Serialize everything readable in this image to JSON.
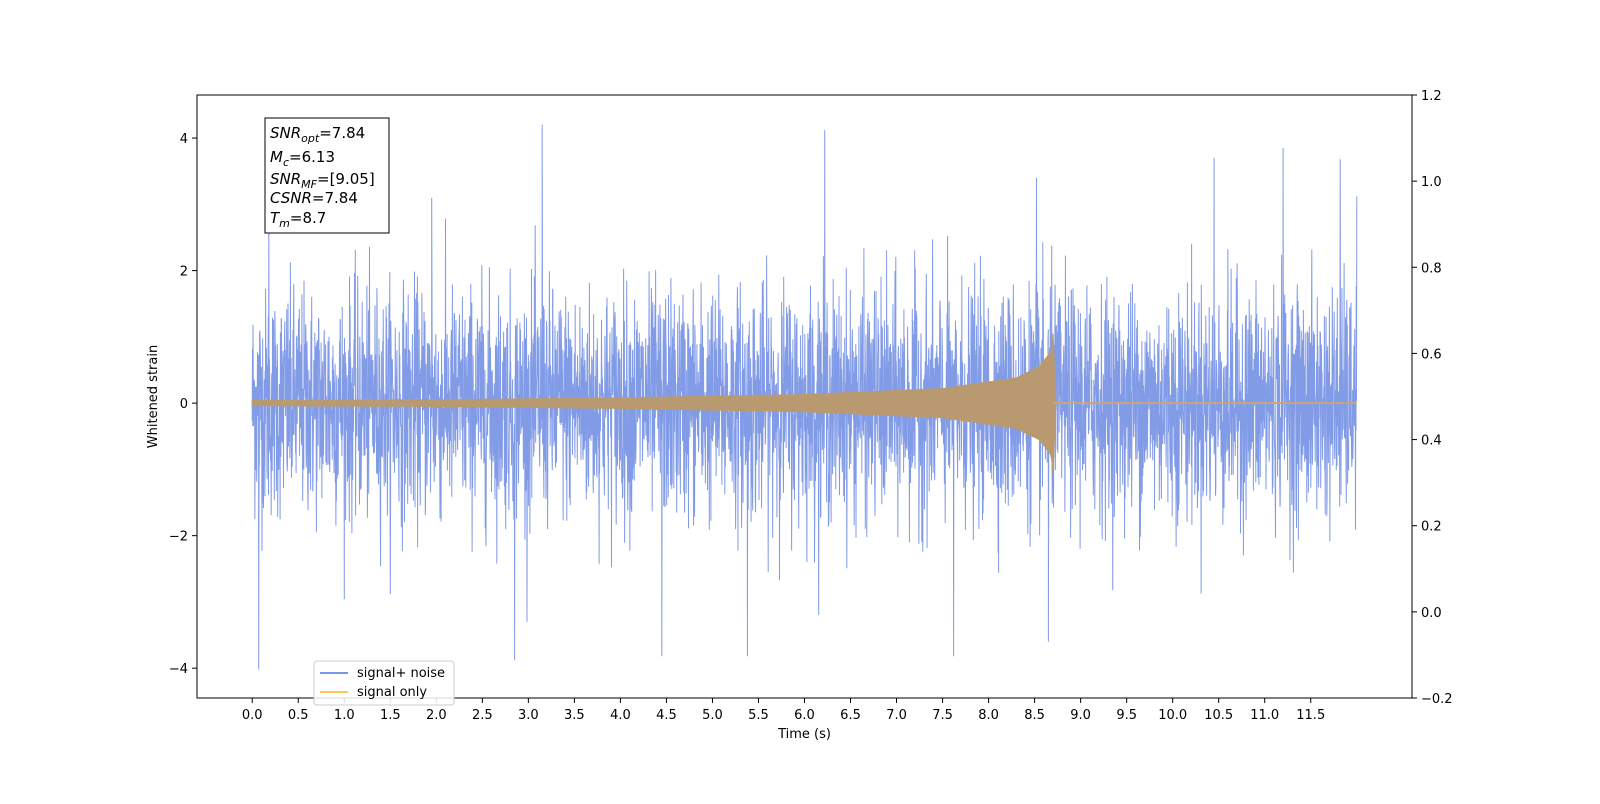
{
  "chart_data": {
    "type": "line",
    "xlabel": "Time (s)",
    "ylabel": "Whitened strain",
    "xlim": [
      -0.6,
      12.6
    ],
    "ylim": [
      -4.45,
      4.65
    ],
    "y2lim": [
      -0.2,
      1.2
    ],
    "x_ticks": [
      "0.0",
      "0.5",
      "1.0",
      "1.5",
      "2.0",
      "2.5",
      "3.0",
      "3.5",
      "4.0",
      "4.5",
      "5.0",
      "5.5",
      "6.0",
      "6.5",
      "7.0",
      "7.5",
      "8.0",
      "8.5",
      "9.0",
      "9.5",
      "10.0",
      "10.5",
      "11.0",
      "11.5"
    ],
    "y_ticks": [
      "−4",
      "−2",
      "0",
      "2",
      "4"
    ],
    "y2_ticks": [
      "−0.2",
      "0.0",
      "0.2",
      "0.4",
      "0.6",
      "0.8",
      "1.0",
      "1.2"
    ],
    "legend_position": "lower-left",
    "series": [
      {
        "name": "signal+ noise",
        "color": "#7b96e6",
        "x_range": [
          0,
          12
        ],
        "noise_sigma": 0.85,
        "peak_values": [
          {
            "x": 0.07,
            "y": -4.02
          },
          {
            "x": 3.15,
            "y": 4.2
          },
          {
            "x": 2.85,
            "y": -3.88
          },
          {
            "x": 6.22,
            "y": 4.12
          },
          {
            "x": 4.45,
            "y": -3.82
          },
          {
            "x": 5.38,
            "y": -3.82
          },
          {
            "x": 7.62,
            "y": -3.82
          },
          {
            "x": 11.2,
            "y": 3.85
          },
          {
            "x": 10.45,
            "y": 3.7
          },
          {
            "x": 11.82,
            "y": 3.68
          },
          {
            "x": 0.18,
            "y": 3.12
          },
          {
            "x": 1.95,
            "y": 3.1
          },
          {
            "x": 8.52,
            "y": 3.4
          },
          {
            "x": 8.65,
            "y": -3.6
          },
          {
            "x": 12.0,
            "y": 3.12
          }
        ]
      },
      {
        "name": "signal only",
        "color": "#ffc75c",
        "x_range": [
          0,
          12
        ],
        "merger_time": 8.7,
        "envelope": [
          {
            "x": 0,
            "y": 0.04
          },
          {
            "x": 2,
            "y": 0.05
          },
          {
            "x": 4,
            "y": 0.08
          },
          {
            "x": 6,
            "y": 0.13
          },
          {
            "x": 7.5,
            "y": 0.22
          },
          {
            "x": 8.3,
            "y": 0.38
          },
          {
            "x": 8.55,
            "y": 0.55
          },
          {
            "x": 8.68,
            "y": 0.78
          },
          {
            "x": 8.7,
            "y": 1.05
          }
        ]
      }
    ],
    "annotation": [
      {
        "name": "SNR",
        "sub": "opt",
        "value": "=7.84"
      },
      {
        "name": "M",
        "sub": "c",
        "value": "=6.13"
      },
      {
        "name": "SNR",
        "sub": "MF",
        "value": "=[9.05]"
      },
      {
        "name": "CSNR",
        "sub": "",
        "value": "=7.84"
      },
      {
        "name": "T",
        "sub": "m",
        "value": "=8.7"
      }
    ]
  }
}
